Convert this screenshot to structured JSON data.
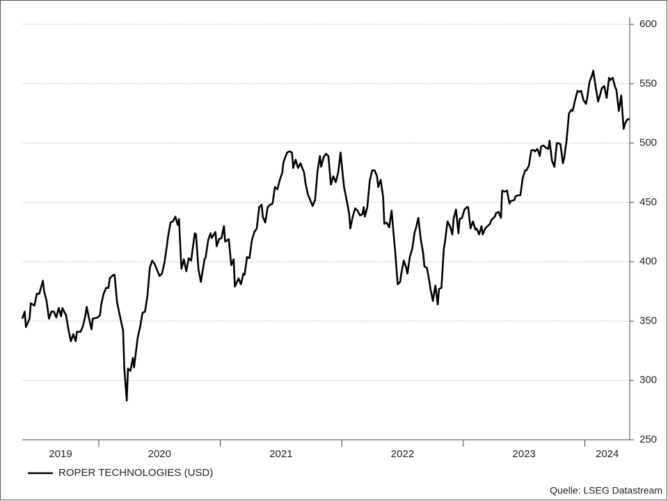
{
  "chart_data": {
    "type": "line",
    "x": [
      2019.37,
      2019.39,
      2019.4,
      2019.43,
      2019.44,
      2019.47,
      2019.49,
      2019.51,
      2019.54,
      2019.55,
      2019.57,
      2019.59,
      2019.61,
      2019.63,
      2019.65,
      2019.67,
      2019.69,
      2019.7,
      2019.73,
      2019.75,
      2019.77,
      2019.79,
      2019.81,
      2019.82,
      2019.85,
      2019.87,
      2019.89,
      2019.9,
      2019.92,
      2019.94,
      2019.95,
      2019.99,
      2020.01,
      2020.02,
      2020.04,
      2020.06,
      2020.08,
      2020.09,
      2020.12,
      2020.13,
      2020.15,
      2020.17,
      2020.2,
      2020.21,
      2020.23,
      2020.24,
      2020.26,
      2020.28,
      2020.29,
      2020.32,
      2020.34,
      2020.36,
      2020.38,
      2020.4,
      2020.42,
      2020.44,
      2020.46,
      2020.48,
      2020.5,
      2020.52,
      2020.54,
      2020.56,
      2020.57,
      2020.59,
      2020.61,
      2020.63,
      2020.65,
      2020.66,
      2020.68,
      2020.7,
      2020.72,
      2020.74,
      2020.76,
      2020.79,
      2020.8,
      2020.82,
      2020.84,
      2020.87,
      2020.88,
      2020.9,
      2020.92,
      2020.93,
      2020.96,
      2020.97,
      2020.99,
      2021.01,
      2021.03,
      2021.04,
      2021.07,
      2021.09,
      2021.11,
      2021.12,
      2021.15,
      2021.17,
      2021.19,
      2021.2,
      2021.22,
      2021.24,
      2021.26,
      2021.28,
      2021.3,
      2021.32,
      2021.34,
      2021.35,
      2021.37,
      2021.39,
      2021.41,
      2021.43,
      2021.45,
      2021.47,
      2021.49,
      2021.51,
      2021.52,
      2021.55,
      2021.57,
      2021.59,
      2021.6,
      2021.62,
      2021.64,
      2021.66,
      2021.69,
      2021.7,
      2021.72,
      2021.74,
      2021.76,
      2021.78,
      2021.8,
      2021.82,
      2021.83,
      2021.85,
      2021.87,
      2021.89,
      2021.91,
      2021.93,
      2021.95,
      2021.97,
      2021.99,
      2022.01,
      2022.02,
      2022.04,
      2022.06,
      2022.07,
      2022.09,
      2022.11,
      2022.13,
      2022.15,
      2022.17,
      2022.18,
      2022.19,
      2022.21,
      2022.23,
      2022.25,
      2022.27,
      2022.29,
      2022.3,
      2022.32,
      2022.34,
      2022.35,
      2022.37,
      2022.39,
      2022.41,
      2022.42,
      2022.44,
      2022.46,
      2022.48,
      2022.49,
      2022.51,
      2022.53,
      2022.54,
      2022.56,
      2022.58,
      2022.6,
      2022.61,
      2022.63,
      2022.65,
      2022.67,
      2022.68,
      2022.7,
      2022.72,
      2022.73,
      2022.75,
      2022.77,
      2022.79,
      2022.8,
      2022.82,
      2022.84,
      2022.85,
      2022.87,
      2022.89,
      2022.91,
      2022.92,
      2022.94,
      2022.96,
      2022.97,
      2022.99,
      2023.01,
      2023.03,
      2023.04,
      2023.06,
      2023.08,
      2023.1,
      2023.11,
      2023.13,
      2023.15,
      2023.16,
      2023.18,
      2023.2,
      2023.22,
      2023.23,
      2023.26,
      2023.27,
      2023.29,
      2023.31,
      2023.32,
      2023.34,
      2023.36,
      2023.38,
      2023.39,
      2023.42,
      2023.43,
      2023.45,
      2023.47,
      2023.49,
      2023.51,
      2023.52,
      2023.54,
      2023.56,
      2023.58,
      2023.59,
      2023.61,
      2023.63,
      2023.64,
      2023.66,
      2023.68,
      2023.7,
      2023.71,
      2023.73,
      2023.75,
      2023.77,
      2023.78,
      2023.8,
      2023.82,
      2023.83,
      2023.85,
      2023.87,
      2023.89,
      2023.9,
      2023.92,
      2023.94,
      2023.95,
      2023.97,
      2023.99,
      2024.01,
      2024.02,
      2024.04,
      2024.06,
      2024.07,
      2024.09,
      2024.11,
      2024.13,
      2024.14,
      2024.16,
      2024.18,
      2024.2,
      2024.21,
      2024.23,
      2024.25,
      2024.26,
      2024.28,
      2024.3,
      2024.32,
      2024.33,
      2024.35,
      2024.37
    ],
    "series": [
      {
        "name": "ROPER TECHNOLOGIES (USD)",
        "color": "#000000",
        "values": [
          352,
          358,
          345,
          352,
          365,
          363,
          373,
          373,
          384,
          375,
          367,
          352,
          358,
          358,
          353,
          361,
          354,
          361,
          355,
          343,
          333,
          339,
          333,
          341,
          341,
          346,
          355,
          362,
          352,
          343,
          352,
          353,
          355,
          364,
          373,
          378,
          378,
          386,
          389,
          389,
          366,
          356,
          342,
          310,
          283,
          310,
          308,
          319,
          311,
          336,
          345,
          357,
          358,
          371,
          395,
          401,
          398,
          393,
          388,
          390,
          399,
          413,
          421,
          433,
          434,
          438,
          431,
          436,
          394,
          402,
          392,
          403,
          401,
          424,
          423,
          394,
          383,
          402,
          404,
          418,
          424,
          420,
          425,
          413,
          419,
          420,
          430,
          417,
          419,
          397,
          402,
          379,
          386,
          381,
          390,
          389,
          404,
          403,
          418,
          425,
          428,
          446,
          448,
          438,
          433,
          446,
          448,
          449,
          463,
          461,
          469,
          475,
          484,
          492,
          493,
          492,
          479,
          486,
          479,
          483,
          475,
          467,
          457,
          452,
          447,
          452,
          476,
          489,
          480,
          488,
          491,
          489,
          465,
          472,
          467,
          475,
          492,
          471,
          462,
          452,
          441,
          428,
          438,
          445,
          443,
          439,
          440,
          446,
          438,
          446,
          468,
          477,
          477,
          472,
          463,
          469,
          455,
          432,
          433,
          429,
          443,
          431,
          408,
          381,
          383,
          390,
          401,
          395,
          390,
          404,
          411,
          425,
          428,
          437,
          419,
          407,
          396,
          395,
          384,
          377,
          367,
          380,
          364,
          377,
          378,
          411,
          417,
          434,
          430,
          423,
          436,
          444,
          424,
          436,
          437,
          444,
          446,
          446,
          428,
          434,
          427,
          428,
          423,
          430,
          423,
          428,
          430,
          432,
          435,
          438,
          441,
          442,
          437,
          460,
          459,
          460,
          449,
          451,
          452,
          455,
          456,
          456,
          471,
          477,
          477,
          481,
          494,
          494,
          493,
          495,
          489,
          497,
          498,
          496,
          495,
          502,
          485,
          480,
          500,
          500,
          499,
          483,
          487,
          502,
          525,
          528,
          527,
          536,
          544,
          543,
          544,
          536,
          533,
          538,
          552,
          557,
          561,
          547,
          535,
          542,
          546,
          548,
          538,
          555,
          553,
          555,
          547,
          545,
          527,
          540,
          512,
          516,
          520,
          520
        ]
      }
    ],
    "xlim": [
      2019.37,
      2024.37
    ],
    "xticks": [
      2019,
      2020,
      2021,
      2022,
      2023,
      2024
    ],
    "ylim": [
      250,
      600
    ],
    "yticks": [
      250,
      300,
      350,
      400,
      450,
      500,
      550,
      600
    ],
    "grid": true,
    "legend": "bottom-left",
    "source": "Quelle: LSEG Datastream"
  }
}
